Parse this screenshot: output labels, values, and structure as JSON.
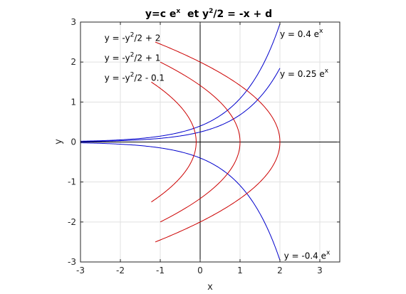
{
  "chart_data": {
    "type": "line",
    "title": {
      "prefix": "y=c e",
      "sup1": "x",
      "middle": "  et y",
      "sup2": "2",
      "suffix": "/2 = -x + d"
    },
    "xlabel": "x",
    "ylabel": "y",
    "xlim": [
      -3,
      3.5
    ],
    "ylim": [
      -3,
      3
    ],
    "xticks": [
      -3,
      -2,
      -1,
      0,
      1,
      2,
      3
    ],
    "yticks": [
      -3,
      -2,
      -1,
      0,
      1,
      2,
      3
    ],
    "grid": true,
    "colors": {
      "exponential": "#0000cc",
      "parabola": "#cc0000",
      "axes": "#000000",
      "grid": "#e0e0e0"
    },
    "exponential_series": [
      {
        "c": 0.4,
        "x_range": [
          -3,
          2
        ]
      },
      {
        "c": 0.25,
        "x_range": [
          -3,
          2
        ]
      },
      {
        "c": -0.4,
        "x_range": [
          -3,
          2
        ]
      }
    ],
    "parabola_series": [
      {
        "d": 2,
        "y_range": [
          -2.5,
          2.5
        ]
      },
      {
        "d": 1,
        "y_range": [
          -2,
          2
        ]
      },
      {
        "d": -0.1,
        "y_range": [
          -1.5,
          1.5
        ]
      }
    ],
    "annotations": [
      {
        "id": "ann-par-2",
        "x": -2.4,
        "y": 2.6,
        "prefix": "y = -y",
        "sup": "2",
        "suffix": "/2 + 2"
      },
      {
        "id": "ann-par-1",
        "x": -2.4,
        "y": 2.1,
        "prefix": "y = -y",
        "sup": "2",
        "suffix": "/2 + 1"
      },
      {
        "id": "ann-par-m01",
        "x": -2.4,
        "y": 1.6,
        "prefix": "y = -y",
        "sup": "2",
        "suffix": "/2 - 0.1"
      },
      {
        "id": "ann-exp-04",
        "x": 2.0,
        "y": 2.7,
        "prefix": "y = 0.4 e",
        "sup": "x",
        "suffix": ""
      },
      {
        "id": "ann-exp-025",
        "x": 2.0,
        "y": 1.7,
        "prefix": "y = 0.25 e",
        "sup": "x",
        "suffix": ""
      },
      {
        "id": "ann-exp-m04",
        "x": 2.1,
        "y": -2.85,
        "prefix": "y = -0.4 e",
        "sup": "x",
        "suffix": ""
      }
    ]
  }
}
